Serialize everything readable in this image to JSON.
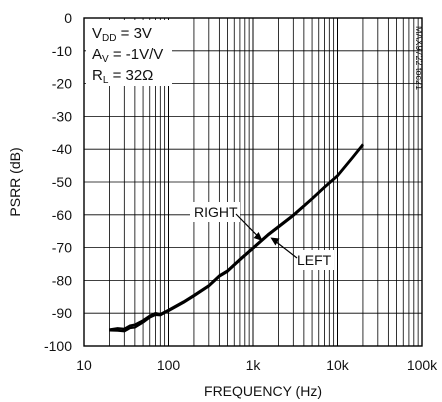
{
  "chart_data": {
    "type": "line",
    "title": "",
    "xlabel": "FREQUENCY (Hz)",
    "ylabel": "PSRR (dB)",
    "xscale": "log",
    "xlim": [
      10,
      100000
    ],
    "ylim": [
      -100,
      0
    ],
    "x_ticks": [
      {
        "value": 10,
        "label": "10"
      },
      {
        "value": 100,
        "label": "100"
      },
      {
        "value": 1000,
        "label": "1k"
      },
      {
        "value": 10000,
        "label": "10k"
      },
      {
        "value": 100000,
        "label": "100k"
      }
    ],
    "y_ticks": [
      {
        "value": 0,
        "label": "0"
      },
      {
        "value": -10,
        "label": "-10"
      },
      {
        "value": -20,
        "label": "-20"
      },
      {
        "value": -30,
        "label": "-30"
      },
      {
        "value": -40,
        "label": "-40"
      },
      {
        "value": -50,
        "label": "-50"
      },
      {
        "value": -60,
        "label": "-60"
      },
      {
        "value": -70,
        "label": "-70"
      },
      {
        "value": -80,
        "label": "-80"
      },
      {
        "value": -90,
        "label": "-90"
      },
      {
        "value": -100,
        "label": "-100"
      }
    ],
    "grid": true,
    "conditions": [
      {
        "main": "V",
        "sub": "DD",
        "rest": " = 3V"
      },
      {
        "main": "A",
        "sub": "V",
        "rest": " = -1V/V"
      },
      {
        "main": "R",
        "sub": "L",
        "rest": " = 32Ω"
      }
    ],
    "figure_code": "MAX9722 toc21",
    "series": [
      {
        "name": "RIGHT",
        "x": [
          20,
          25,
          30,
          35,
          40,
          50,
          60,
          70,
          80,
          90,
          100,
          150,
          200,
          300,
          400,
          500,
          700,
          1000,
          1500,
          2000,
          3000,
          5000,
          7000,
          10000,
          15000,
          20000
        ],
        "y": [
          -95,
          -94.6,
          -94.8,
          -93.8,
          -93.5,
          -92.2,
          -90.8,
          -90,
          -90.3,
          -89.6,
          -89,
          -86.5,
          -84.5,
          -81.5,
          -78.5,
          -77,
          -73.5,
          -70,
          -66,
          -63.5,
          -60,
          -55,
          -51.5,
          -48,
          -42.5,
          -38.5
        ]
      },
      {
        "name": "LEFT",
        "x": [
          20,
          25,
          30,
          35,
          40,
          50,
          60,
          70,
          80,
          90,
          100,
          150,
          200,
          300,
          400,
          500,
          700,
          1000,
          1500,
          2000,
          3000,
          5000,
          7000,
          10000,
          15000,
          20000
        ],
        "y": [
          -95.2,
          -95.3,
          -95.5,
          -94.5,
          -94.3,
          -92.8,
          -91.3,
          -90.5,
          -90.6,
          -89.9,
          -89.3,
          -86.8,
          -84.8,
          -81.8,
          -78.8,
          -77.3,
          -73.8,
          -70.3,
          -66.3,
          -63.8,
          -60.3,
          -55.2,
          -51.7,
          -48.2,
          -42.7,
          -38.7
        ]
      }
    ],
    "annotations": [
      {
        "text": "RIGHT",
        "target_series": "RIGHT",
        "at_x": 1300,
        "at_y": -68
      },
      {
        "text": "LEFT",
        "target_series": "LEFT",
        "at_x": 2000,
        "at_y": -66
      }
    ]
  }
}
